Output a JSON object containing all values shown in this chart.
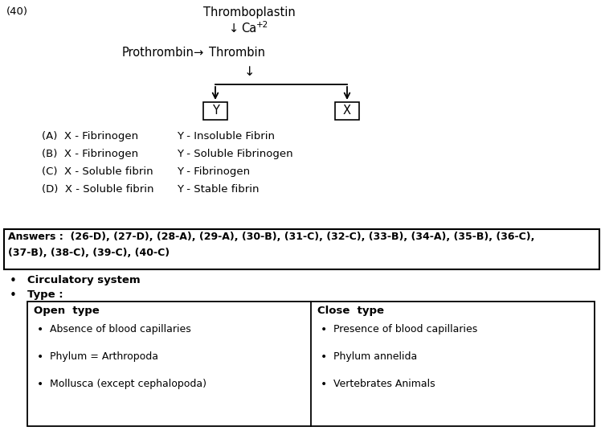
{
  "bg_color": "#ffffff",
  "question_num": "(40)",
  "thromboplastin": "Thromboplastin",
  "box_Y": "Y",
  "box_X": "X",
  "options_A_left": "(A)  X - Fibrinogen",
  "options_A_right": "Y - Insoluble Fibrin",
  "options_B_left": "(B)  X - Fibrinogen",
  "options_B_right": "Y - Soluble Fibrinogen",
  "options_C_left": "(C)  X - Soluble fibrin",
  "options_C_right": "Y - Fibrinogen",
  "options_D_left": "(D)  X - Soluble fibrin",
  "options_D_right": "Y - Stable fibrin",
  "answers_line1": "Answers :  (26-D), (27-D), (28-A), (29-A), (30-B), (31-C), (32-C), (33-B), (34-A), (35-B), (36-C),",
  "answers_line2": "(37-B), (38-C), (39-C), (40-C)",
  "bullet1": "Circulatory system",
  "bullet2": "Type :",
  "table_header1": "Open  type",
  "table_header2": "Close  type",
  "table_col1": [
    "Absence of blood capillaries",
    "Phylum = Arthropoda",
    "Mollusca (except cephalopoda)"
  ],
  "table_col2": [
    "Presence of blood capillaries",
    "Phylum annelida",
    "Vertebrates Animals"
  ],
  "font_family": "DejaVu Sans"
}
